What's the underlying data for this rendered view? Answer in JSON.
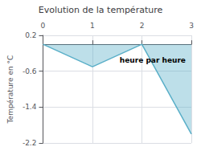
{
  "chart_data": {
    "type": "area",
    "title": "Evolution de la température",
    "y_label": "Température en °C",
    "annotations": [
      {
        "text": "heure par heure",
        "x": 1.55,
        "y": -0.28
      }
    ],
    "x": [
      0,
      1,
      2,
      3
    ],
    "values": [
      0.0,
      -0.5,
      0.0,
      -2.0
    ],
    "color": "#5aafc8",
    "xlim": [
      0,
      3
    ],
    "xticks": [
      0,
      1,
      2,
      3
    ],
    "ylim": [
      -2.2,
      0.2
    ],
    "yticks": [
      0.2,
      -0.6,
      -1.4,
      -2.2
    ],
    "grid": true
  }
}
